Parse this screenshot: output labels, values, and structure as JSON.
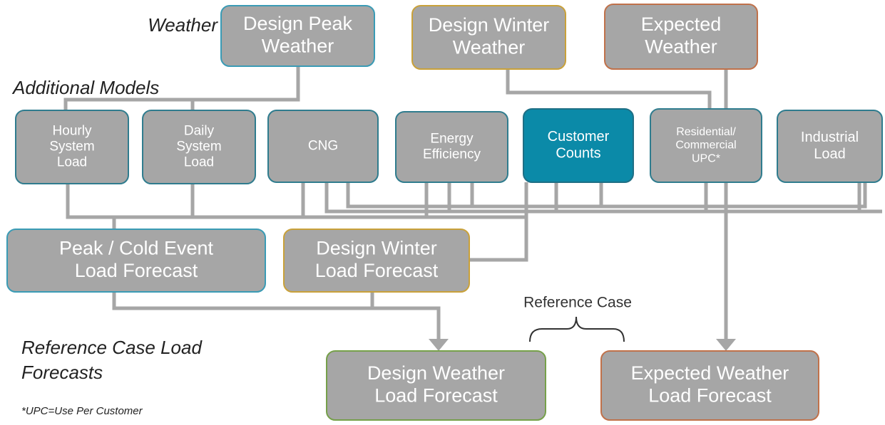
{
  "labels": {
    "weather": "Weather",
    "additional_models": "Additional Models",
    "reference_case_forecasts": [
      "Reference Case Load",
      "Forecasts"
    ],
    "footnote": "*UPC=Use Per Customer",
    "reference_case": "Reference Case"
  },
  "nodes": [
    {
      "label": [
        "Design Peak",
        "Weather"
      ]
    },
    {
      "label": [
        "Design Winter",
        "Weather"
      ]
    },
    {
      "label": [
        "Expected",
        "Weather"
      ]
    },
    {
      "label": [
        "Hourly",
        "System",
        "Load"
      ]
    },
    {
      "label": [
        "Daily",
        "System",
        "Load"
      ]
    },
    {
      "label": [
        "CNG"
      ]
    },
    {
      "label": [
        "Energy",
        "Efficiency"
      ]
    },
    {
      "label": [
        "Customer",
        "Counts"
      ]
    },
    {
      "label": [
        "Residential/",
        "Commercial",
        "UPC*"
      ]
    },
    {
      "label": [
        "Industrial",
        "Load"
      ]
    },
    {
      "label": [
        "Peak / Cold Event",
        "Load Forecast"
      ]
    },
    {
      "label": [
        "Design Winter",
        "Load Forecast"
      ]
    },
    {
      "label": [
        "Design Weather",
        "Load Forecast"
      ]
    },
    {
      "label": [
        "Expected Weather",
        "Load Forecast"
      ]
    }
  ]
}
